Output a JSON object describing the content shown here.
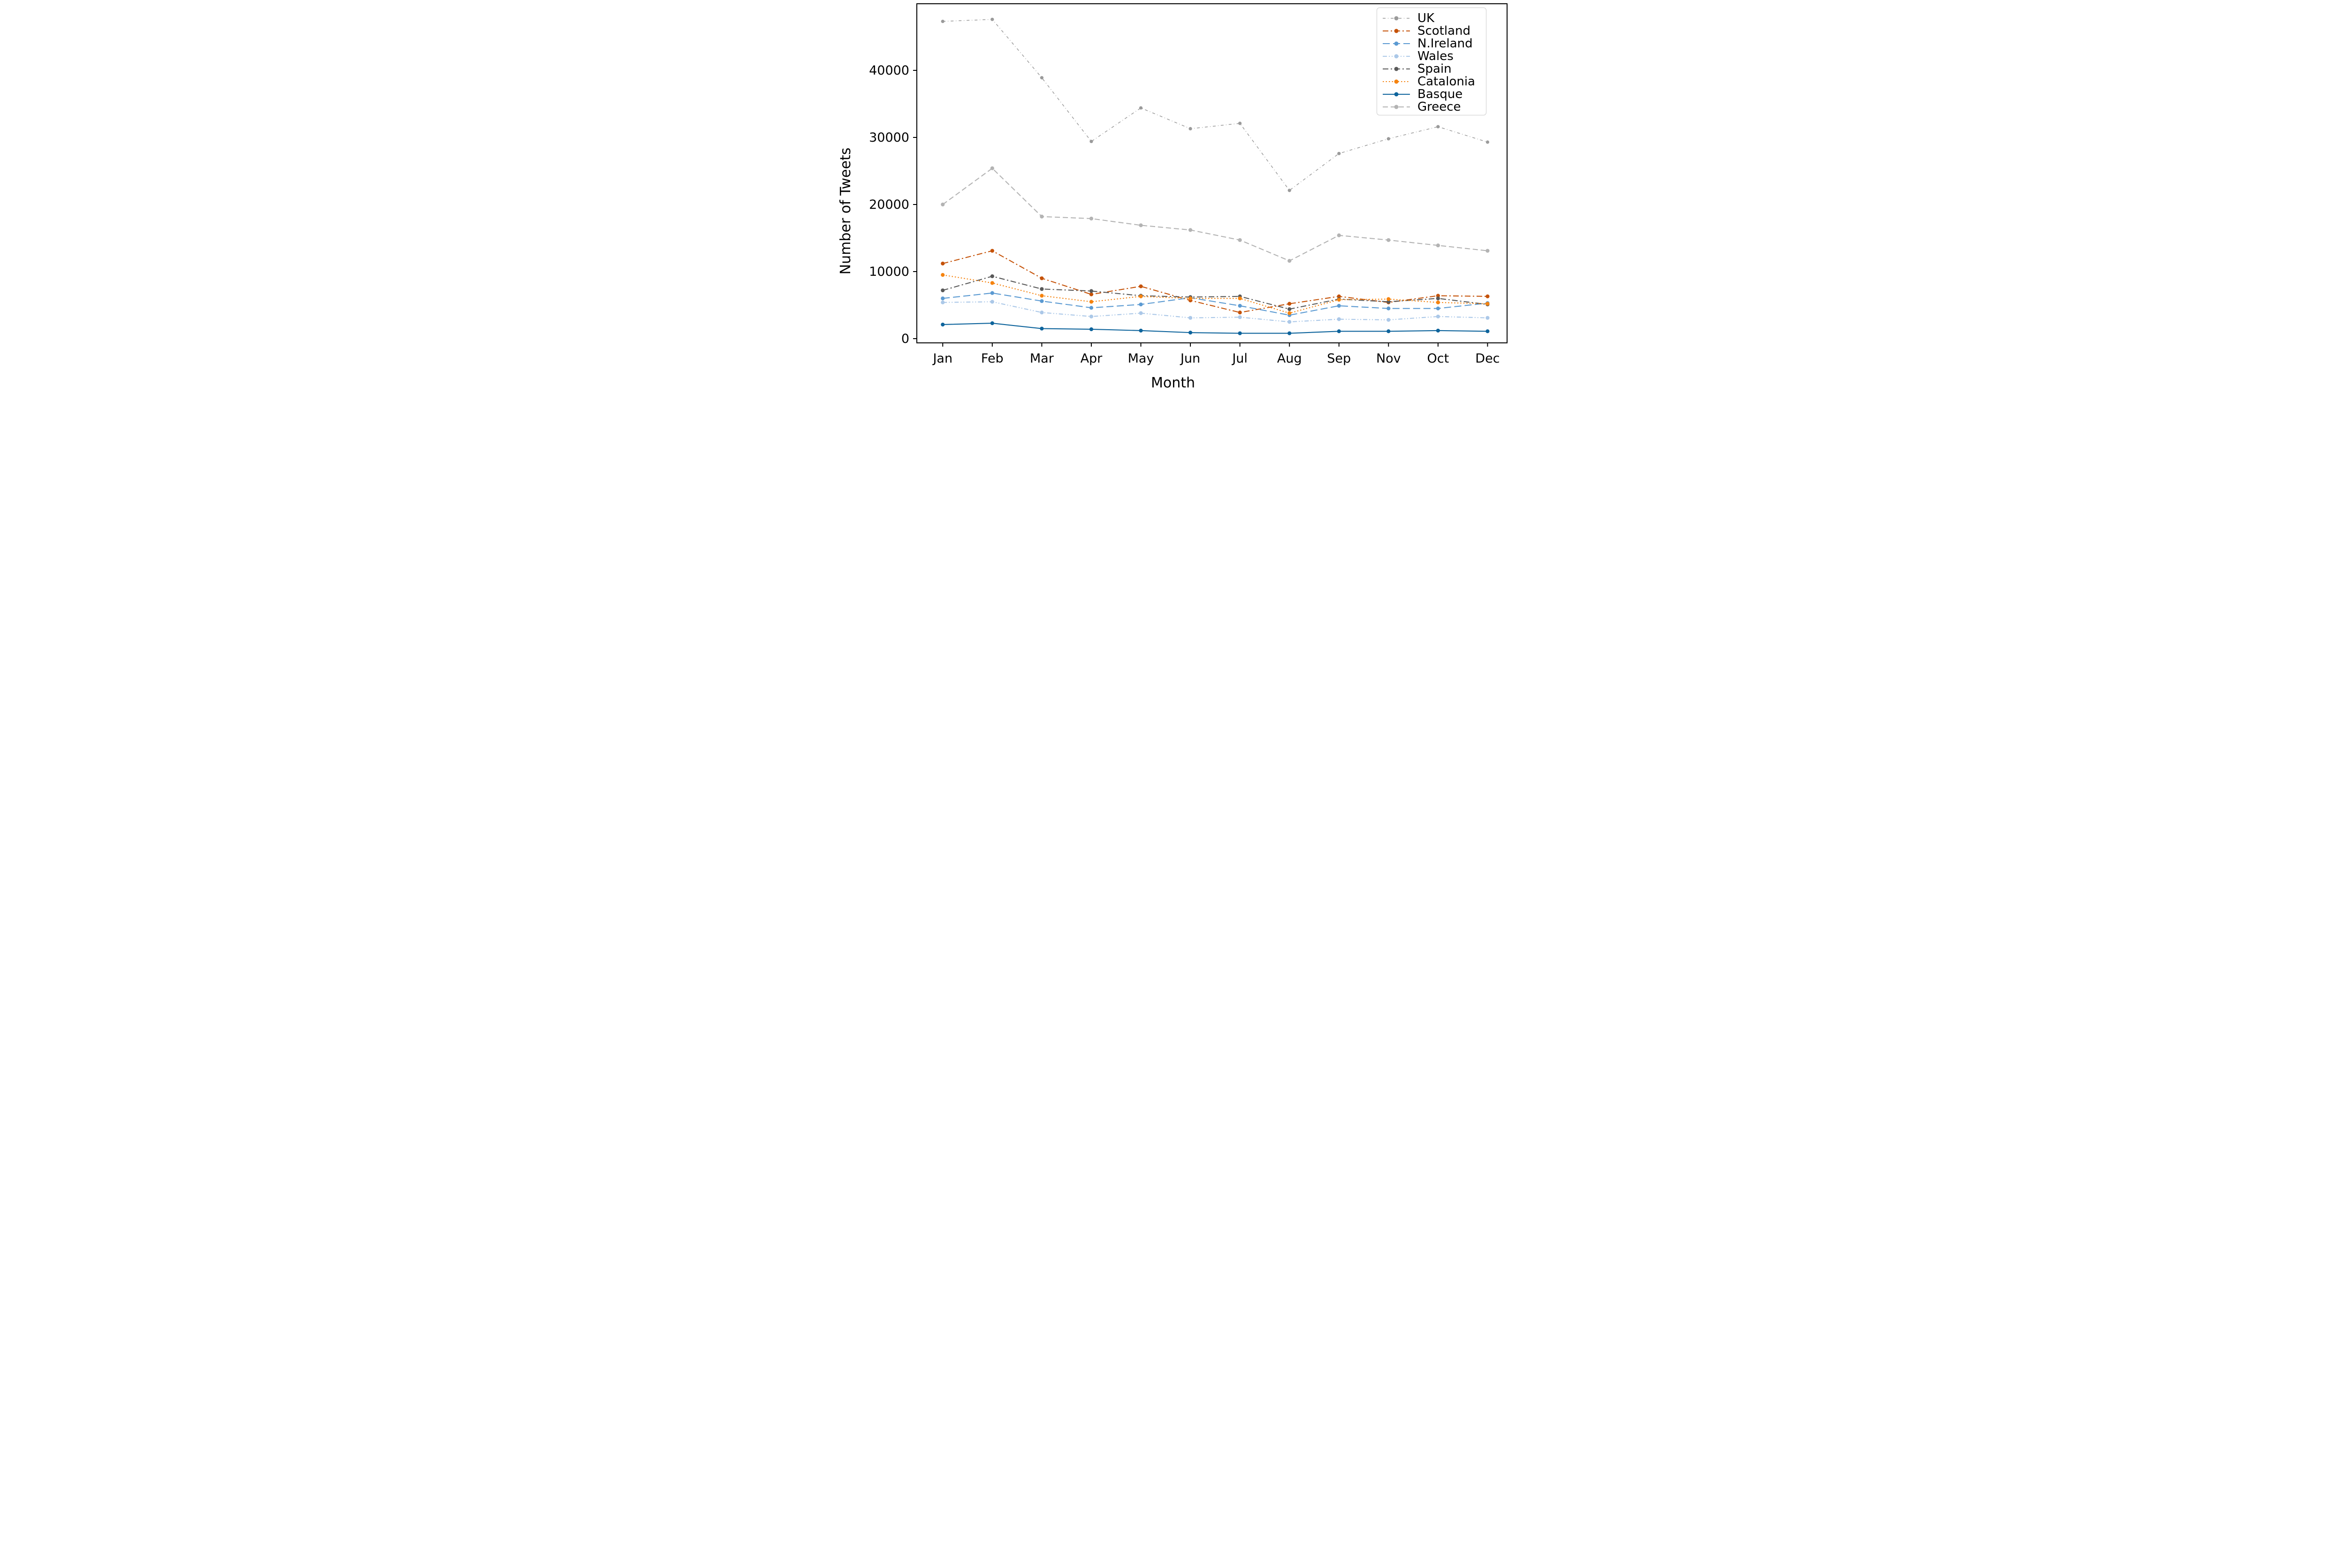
{
  "figure": {
    "background": "#ffffff",
    "plot_border_color": "#000000"
  },
  "axes": {
    "x_label": "Month",
    "y_label": "Number of Tweets",
    "x_tick_labels": [
      "Jan",
      "Feb",
      "Mar",
      "Apr",
      "May",
      "Jun",
      "Jul",
      "Aug",
      "Sep",
      "Nov",
      "Oct",
      "Dec"
    ],
    "y_tick_labels": [
      "0",
      "10000",
      "20000",
      "30000",
      "40000"
    ],
    "y_tick_values": [
      0,
      10000,
      20000,
      30000,
      40000
    ]
  },
  "chart_data": {
    "type": "line",
    "title": "",
    "xlabel": "Month",
    "ylabel": "Number of Tweets",
    "categories": [
      "Jan",
      "Feb",
      "Mar",
      "Apr",
      "May",
      "Jun",
      "Jul",
      "Aug",
      "Sep",
      "Nov",
      "Oct",
      "Dec"
    ],
    "ylim": [
      0,
      49900
    ],
    "grid": false,
    "legend_position": "upper right",
    "series": [
      {
        "name": "UK",
        "color": "#9a9a9a",
        "line_style": "dash-dot-sparse",
        "values": [
          47300,
          47600,
          38900,
          29400,
          34400,
          31300,
          32100,
          22100,
          27600,
          29800,
          31600,
          29300
        ]
      },
      {
        "name": "Scotland",
        "color": "#c55208",
        "line_style": "dash-dot",
        "values": [
          11200,
          13100,
          9000,
          6600,
          7800,
          5700,
          3900,
          5200,
          6300,
          5400,
          6400,
          6300
        ]
      },
      {
        "name": "N.Ireland",
        "color": "#5b9ad2",
        "line_style": "long-dash",
        "values": [
          6000,
          6800,
          5600,
          4600,
          5100,
          6100,
          4900,
          3500,
          4900,
          4500,
          4500,
          5300
        ]
      },
      {
        "name": "Wales",
        "color": "#abc8e8",
        "line_style": "dash-dot-dot",
        "values": [
          5400,
          5500,
          3900,
          3300,
          3800,
          3100,
          3200,
          2500,
          2900,
          2800,
          3300,
          3100
        ]
      },
      {
        "name": "Spain",
        "color": "#595959",
        "line_style": "dash-dot",
        "values": [
          7200,
          9300,
          7400,
          7100,
          6400,
          6200,
          6300,
          4400,
          5900,
          5500,
          6000,
          5100
        ]
      },
      {
        "name": "Catalonia",
        "color": "#f5830f",
        "line_style": "dotted",
        "values": [
          9500,
          8300,
          6400,
          5500,
          6300,
          6000,
          6000,
          3800,
          5800,
          5900,
          5400,
          5200
        ]
      },
      {
        "name": "Basque",
        "color": "#0e649c",
        "line_style": "solid",
        "values": [
          2100,
          2300,
          1500,
          1400,
          1200,
          900,
          800,
          800,
          1100,
          1100,
          1200,
          1100
        ]
      },
      {
        "name": "Greece",
        "color": "#b3b3b3",
        "line_style": "dashed",
        "values": [
          20000,
          25400,
          18200,
          17900,
          16900,
          16200,
          14700,
          11600,
          15400,
          14700,
          13900,
          13100
        ]
      }
    ]
  }
}
